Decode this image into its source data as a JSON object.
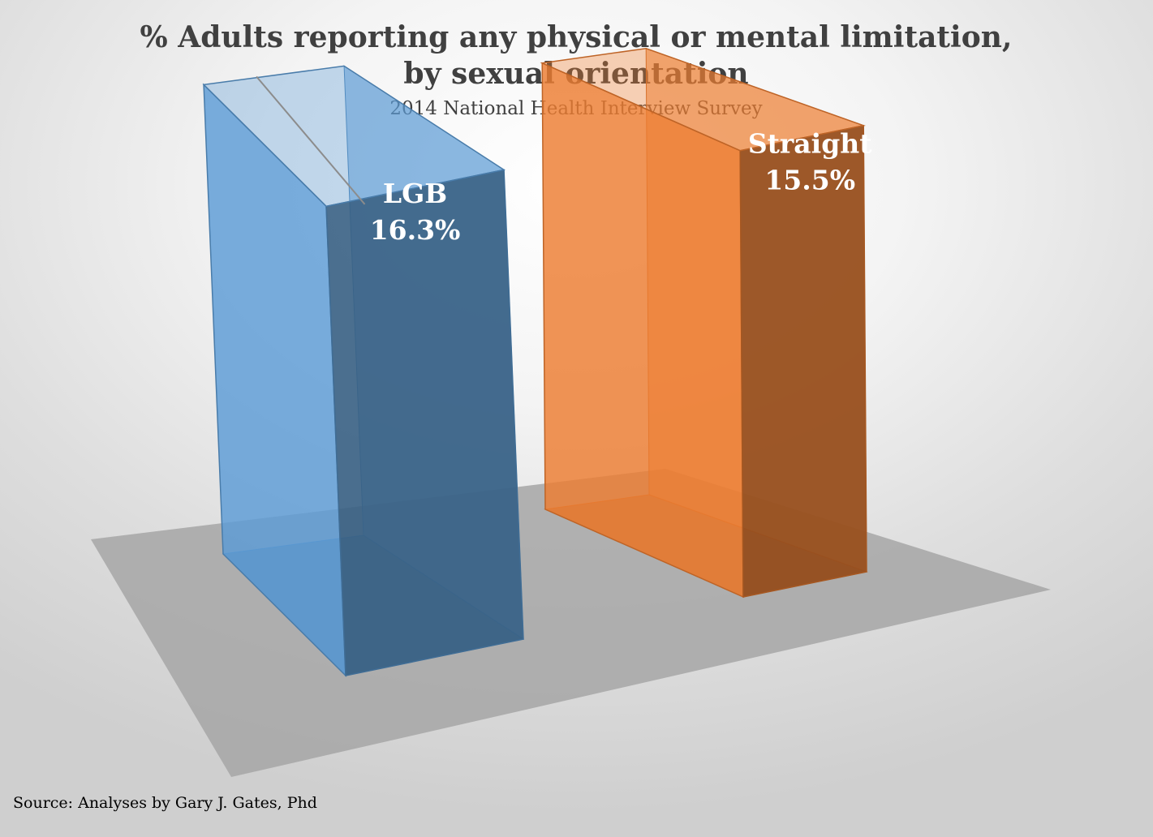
{
  "chart_data": {
    "type": "bar",
    "title": [
      "% Adults reporting any physical or mental limitation,",
      "by sexual orientation"
    ],
    "subtitle": "2014 National Health Interview Survey",
    "categories": [
      "LGB",
      "Straight"
    ],
    "values": [
      16.3,
      15.5
    ],
    "value_labels": [
      "16.3%",
      "15.5%"
    ],
    "unit": "%",
    "colors": [
      "#5b9bd5",
      "#ed7d31"
    ],
    "style": "3d-column",
    "gridlines": false,
    "legend": "none",
    "xlabel": "",
    "ylabel": ""
  },
  "source_note": "Source: Analyses by Gary J. Gates, Phd"
}
